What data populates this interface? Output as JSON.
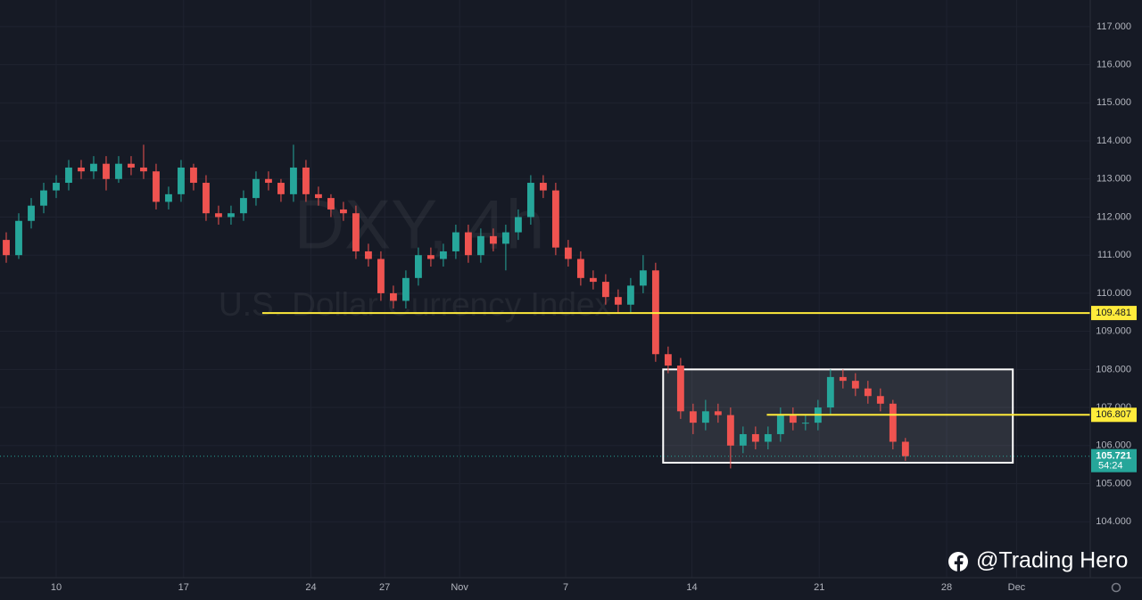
{
  "chart_data": {
    "type": "candlestick",
    "title": "DXY, 4h",
    "subtitle": "U.S. Dollar Currency Index",
    "watermark": "@Trading Hero",
    "up_color": "#26a69a",
    "down_color": "#ef5350",
    "level_color": "#ffeb3b",
    "grid": true,
    "open": [
      111.4,
      111.0,
      111.9,
      112.3,
      112.7,
      112.9,
      113.3,
      113.2,
      113.4,
      113.0,
      113.4,
      113.3,
      113.2,
      112.4,
      112.6,
      113.3,
      112.9,
      112.1,
      112.0,
      112.1,
      112.5,
      113.0,
      112.9,
      112.6,
      113.3,
      112.6,
      112.5,
      112.2,
      112.1,
      111.1,
      110.9,
      110.0,
      109.8,
      110.4,
      111.0,
      110.9,
      111.1,
      111.6,
      111.0,
      111.5,
      111.3,
      111.6,
      112.0,
      112.9,
      112.7,
      111.2,
      110.9,
      110.4,
      110.3,
      109.9,
      109.7,
      110.2,
      110.6,
      108.4,
      108.1,
      106.9,
      106.6,
      106.9,
      106.8,
      106.0,
      106.3,
      106.1,
      106.3,
      106.8,
      106.6,
      106.6,
      107.0,
      107.8,
      107.7,
      107.5,
      107.3,
      107.1,
      106.1
    ],
    "high": [
      111.6,
      112.1,
      112.5,
      112.9,
      113.1,
      113.5,
      113.5,
      113.6,
      113.6,
      113.6,
      113.6,
      113.9,
      113.4,
      112.8,
      113.5,
      113.4,
      113.1,
      112.3,
      112.3,
      112.7,
      113.2,
      113.2,
      113.0,
      113.9,
      113.5,
      112.8,
      112.6,
      112.4,
      112.3,
      111.3,
      111.1,
      110.2,
      110.6,
      111.2,
      111.2,
      111.3,
      111.8,
      111.8,
      111.7,
      111.7,
      111.8,
      112.2,
      113.1,
      113.1,
      112.9,
      111.4,
      111.1,
      110.6,
      110.5,
      110.1,
      110.4,
      111.0,
      110.8,
      108.6,
      108.3,
      107.1,
      107.2,
      107.1,
      107.0,
      106.5,
      106.5,
      106.5,
      107.0,
      107.0,
      106.8,
      107.2,
      108.0,
      108.0,
      107.9,
      107.7,
      107.5,
      107.2,
      106.2
    ],
    "low": [
      110.8,
      110.9,
      111.7,
      112.1,
      112.5,
      112.7,
      113.0,
      113.0,
      112.7,
      112.9,
      113.1,
      113.0,
      112.2,
      112.2,
      112.4,
      112.7,
      111.9,
      111.8,
      111.8,
      111.9,
      112.3,
      112.7,
      112.4,
      112.4,
      112.4,
      112.3,
      112.0,
      111.9,
      110.9,
      110.7,
      109.8,
      109.6,
      109.6,
      110.2,
      110.7,
      110.7,
      110.9,
      110.8,
      110.8,
      111.1,
      110.6,
      111.4,
      111.8,
      112.5,
      111.0,
      110.7,
      110.2,
      110.1,
      109.7,
      109.5,
      109.5,
      110.0,
      108.2,
      107.9,
      106.7,
      106.3,
      106.4,
      106.6,
      105.4,
      105.8,
      105.9,
      105.9,
      106.1,
      106.4,
      106.4,
      106.4,
      106.8,
      107.5,
      107.3,
      107.1,
      106.9,
      105.9,
      105.6
    ],
    "close": [
      111.0,
      111.9,
      112.3,
      112.7,
      112.9,
      113.3,
      113.2,
      113.4,
      113.0,
      113.4,
      113.3,
      113.2,
      112.4,
      112.6,
      113.3,
      112.9,
      112.1,
      112.0,
      112.1,
      112.5,
      113.0,
      112.9,
      112.6,
      113.3,
      112.6,
      112.5,
      112.2,
      112.1,
      111.1,
      110.9,
      110.0,
      109.8,
      110.4,
      111.0,
      110.9,
      111.1,
      111.6,
      111.0,
      111.5,
      111.3,
      111.6,
      112.0,
      112.9,
      112.7,
      111.2,
      110.9,
      110.4,
      110.3,
      109.9,
      109.7,
      110.2,
      110.6,
      108.4,
      108.1,
      106.9,
      106.6,
      106.9,
      106.8,
      106.0,
      106.3,
      106.1,
      106.3,
      106.8,
      106.6,
      106.6,
      107.0,
      107.8,
      107.7,
      107.5,
      107.3,
      107.1,
      106.1,
      105.721
    ],
    "xlim": [
      -0.5,
      86.8
    ],
    "xticks": [
      {
        "value": 4,
        "label": "10"
      },
      {
        "value": 14.2,
        "label": "17"
      },
      {
        "value": 24.4,
        "label": "24"
      },
      {
        "value": 30.3,
        "label": "27"
      },
      {
        "value": 36.3,
        "label": "Nov"
      },
      {
        "value": 44.8,
        "label": "7"
      },
      {
        "value": 54.9,
        "label": "14"
      },
      {
        "value": 65.1,
        "label": "21"
      },
      {
        "value": 75.3,
        "label": "28"
      },
      {
        "value": 80.9,
        "label": "Dec"
      }
    ],
    "ylim": [
      102.53,
      117.7
    ],
    "yticks": [
      {
        "value": 104,
        "label": "104.000"
      },
      {
        "value": 105,
        "label": "105.000"
      },
      {
        "value": 106,
        "label": "106.000"
      },
      {
        "value": 107,
        "label": "107.000"
      },
      {
        "value": 108,
        "label": "108.000"
      },
      {
        "value": 109,
        "label": "109.000"
      },
      {
        "value": 110,
        "label": "110.000"
      },
      {
        "value": 111,
        "label": "111.000"
      },
      {
        "value": 112,
        "label": "112.000"
      },
      {
        "value": 113,
        "label": "113.000"
      },
      {
        "value": 114,
        "label": "114.000"
      },
      {
        "value": 115,
        "label": "115.000"
      },
      {
        "value": 116,
        "label": "116.000"
      },
      {
        "value": 117,
        "label": "117.000"
      }
    ],
    "levels": [
      {
        "value": 109.481,
        "from": 20.5
      },
      {
        "value": 106.807,
        "from": 60.9
      }
    ],
    "box": {
      "x": [
        52.6,
        80.6
      ],
      "y": [
        105.55,
        108.0
      ]
    },
    "last_price": 105.721,
    "countdown": "54:24"
  }
}
